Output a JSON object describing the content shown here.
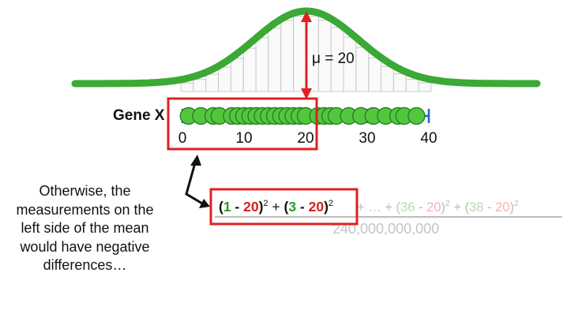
{
  "colors": {
    "curve": "#3aa935",
    "dot_fill": "#52c73e",
    "dot_stroke": "#2a7f23",
    "axis": "#1a66c4",
    "highlight": "#e02020",
    "arrow": "#e02020",
    "faded_green": "#b6dcb0",
    "faded_red": "#f3b3b3",
    "faded_gray": "#bdbdbd",
    "histogram": "#c8c8c8"
  },
  "gene_label": "Gene X",
  "mean_label": "μ = 20",
  "axis": {
    "min": 0,
    "max": 40,
    "ticks": [
      0,
      10,
      20,
      30,
      40
    ]
  },
  "measurements": [
    1,
    3,
    5,
    6,
    8,
    9,
    10,
    11,
    12,
    13,
    14,
    15,
    16,
    17,
    18,
    19,
    20,
    22,
    23,
    24,
    25,
    27,
    29,
    31,
    33,
    35,
    36,
    38
  ],
  "mean": 20,
  "note_lines": [
    "Otherwise, the",
    "measurements on the",
    "left side of the mean",
    "would have negative",
    "differences…"
  ],
  "equation": {
    "term1": {
      "open": "(",
      "x": "1",
      "minus": " - ",
      "mu": "20",
      "close": ")",
      "exp": "2"
    },
    "plus1": " + ",
    "term2": {
      "open": "(",
      "x": "3",
      "minus": " - ",
      "mu": "20",
      "close": ")",
      "exp": "2"
    },
    "faded_rest": [
      {
        "text": " + … + (",
        "role": "gray"
      },
      {
        "text": "36",
        "role": "green"
      },
      {
        "text": " - ",
        "role": "gray"
      },
      {
        "text": "20",
        "role": "red"
      },
      {
        "text": ")",
        "role": "gray"
      },
      {
        "text": "2",
        "role": "gray",
        "sup": true
      },
      {
        "text": " + (",
        "role": "gray"
      },
      {
        "text": "38",
        "role": "green"
      },
      {
        "text": " - ",
        "role": "gray"
      },
      {
        "text": "20",
        "role": "red"
      },
      {
        "text": ")",
        "role": "gray"
      },
      {
        "text": "2",
        "role": "gray",
        "sup": true
      }
    ],
    "denominator": "240,000,000,000"
  }
}
